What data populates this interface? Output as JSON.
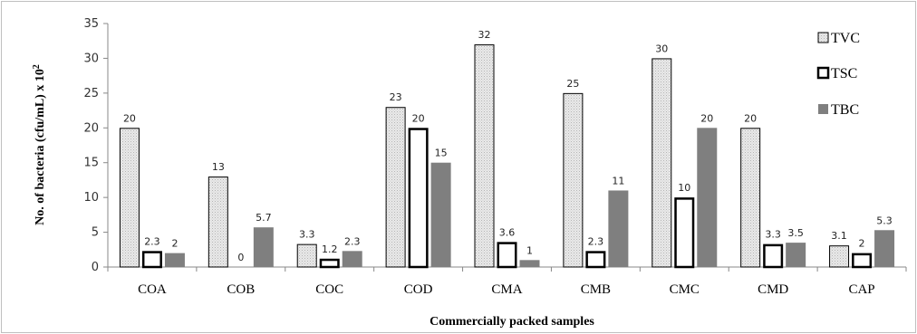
{
  "chart_data": {
    "type": "bar",
    "title": "",
    "xlabel": "Commercially packed samples",
    "ylabel": "No. of bacteria (cfu/mL) x 10",
    "ylabel_superscript": "2",
    "ylim": [
      0,
      35
    ],
    "yticks": [
      0,
      5,
      10,
      15,
      20,
      25,
      30,
      35
    ],
    "grid": false,
    "legend_position": "right",
    "categories": [
      "COA",
      "COB",
      "COC",
      "COD",
      "CMA",
      "CMB",
      "CMC",
      "CMD",
      "CAP"
    ],
    "series": [
      {
        "name": "TVC",
        "values": [
          20,
          13,
          3.3,
          23,
          32,
          25,
          30,
          20,
          3.1
        ],
        "labels": [
          "20",
          "13",
          "3.3",
          "23",
          "32",
          "25",
          "30",
          "20",
          "3.1"
        ],
        "style": "dotted-light",
        "fill": "#e6e6e6",
        "stroke": "#000000"
      },
      {
        "name": "TSC",
        "values": [
          2.3,
          0,
          1.2,
          20,
          3.6,
          2.3,
          10,
          3.3,
          2
        ],
        "labels": [
          "2.3",
          "0",
          "1.2",
          "20",
          "3.6",
          "2.3",
          "10",
          "3.3",
          "2"
        ],
        "style": "outline",
        "fill": "#ffffff",
        "stroke": "#000000"
      },
      {
        "name": "TBC",
        "values": [
          2,
          5.7,
          2.3,
          15,
          1,
          11,
          20,
          3.5,
          5.3
        ],
        "labels": [
          "2",
          "5.7",
          "2.3",
          "15",
          "1",
          "11",
          "20",
          "3.5",
          "5.3"
        ],
        "style": "solid-grey",
        "fill": "#7f7f7f",
        "stroke": "#7f7f7f"
      }
    ]
  }
}
